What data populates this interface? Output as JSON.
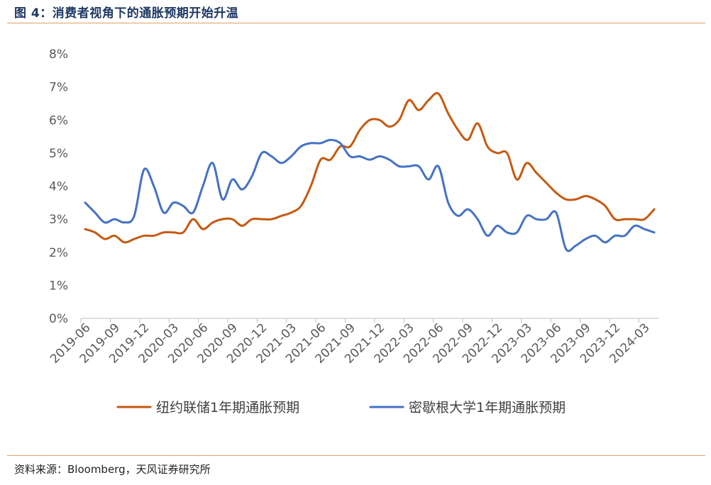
{
  "figure": {
    "title": "图 4：消费者视角下的通胀预期开始升温",
    "source": "资料来源：Bloomberg，天风证券研究所"
  },
  "chart_data": {
    "type": "line",
    "title": "",
    "xlabel": "",
    "ylabel": "",
    "ylim": [
      0,
      8
    ],
    "y_ticks": [
      "0%",
      "1%",
      "2%",
      "3%",
      "4%",
      "5%",
      "6%",
      "7%",
      "8%"
    ],
    "x_ticks": [
      "2019-06",
      "2019-09",
      "2019-12",
      "2020-03",
      "2020-06",
      "2020-09",
      "2020-12",
      "2021-03",
      "2021-06",
      "2021-09",
      "2021-12",
      "2022-03",
      "2022-06",
      "2022-09",
      "2022-12",
      "2023-03",
      "2023-06",
      "2023-09",
      "2023-12",
      "2024-03"
    ],
    "x": [
      "2019-06",
      "2019-07",
      "2019-08",
      "2019-09",
      "2019-10",
      "2019-11",
      "2019-12",
      "2020-01",
      "2020-02",
      "2020-03",
      "2020-04",
      "2020-05",
      "2020-06",
      "2020-07",
      "2020-08",
      "2020-09",
      "2020-10",
      "2020-11",
      "2020-12",
      "2021-01",
      "2021-02",
      "2021-03",
      "2021-04",
      "2021-05",
      "2021-06",
      "2021-07",
      "2021-08",
      "2021-09",
      "2021-10",
      "2021-11",
      "2021-12",
      "2022-01",
      "2022-02",
      "2022-03",
      "2022-04",
      "2022-05",
      "2022-06",
      "2022-07",
      "2022-08",
      "2022-09",
      "2022-10",
      "2022-11",
      "2022-12",
      "2023-01",
      "2023-02",
      "2023-03",
      "2023-04",
      "2023-05",
      "2023-06",
      "2023-07",
      "2023-08",
      "2023-09",
      "2023-10",
      "2023-11",
      "2023-12",
      "2024-01",
      "2024-02",
      "2024-03",
      "2024-04"
    ],
    "grid": false,
    "legend_position": "bottom",
    "series": [
      {
        "name": "纽约联储1年期通胀预期",
        "color": "#c55a11",
        "values": [
          2.7,
          2.6,
          2.4,
          2.5,
          2.3,
          2.4,
          2.5,
          2.5,
          2.6,
          2.6,
          2.6,
          3.0,
          2.7,
          2.9,
          3.0,
          3.0,
          2.8,
          3.0,
          3.0,
          3.0,
          3.1,
          3.2,
          3.4,
          4.0,
          4.8,
          4.8,
          5.2,
          5.2,
          5.7,
          6.0,
          6.0,
          5.8,
          6.0,
          6.6,
          6.3,
          6.6,
          6.8,
          6.2,
          5.7,
          5.4,
          5.9,
          5.2,
          5.0,
          5.0,
          4.2,
          4.7,
          4.4,
          4.1,
          3.8,
          3.6,
          3.6,
          3.7,
          3.6,
          3.4,
          3.0,
          3.0,
          3.0,
          3.0,
          3.3
        ]
      },
      {
        "name": "密歇根大学1年期通胀预期",
        "color": "#4472c4",
        "values": [
          3.5,
          3.2,
          2.9,
          3.0,
          2.9,
          3.1,
          4.5,
          4.0,
          3.2,
          3.5,
          3.4,
          3.2,
          4.0,
          4.7,
          3.6,
          4.2,
          3.9,
          4.3,
          5.0,
          4.9,
          4.7,
          4.9,
          5.2,
          5.3,
          5.3,
          5.4,
          5.3,
          4.9,
          4.9,
          4.8,
          4.9,
          4.8,
          4.6,
          4.6,
          4.6,
          4.2,
          4.6,
          3.5,
          3.1,
          3.3,
          3.0,
          2.5,
          2.8,
          2.6,
          2.6,
          3.1,
          3.0,
          3.0,
          3.2,
          2.1,
          2.2,
          2.4,
          2.5,
          2.3,
          2.5,
          2.5,
          2.8,
          2.7,
          2.6
        ]
      }
    ]
  }
}
